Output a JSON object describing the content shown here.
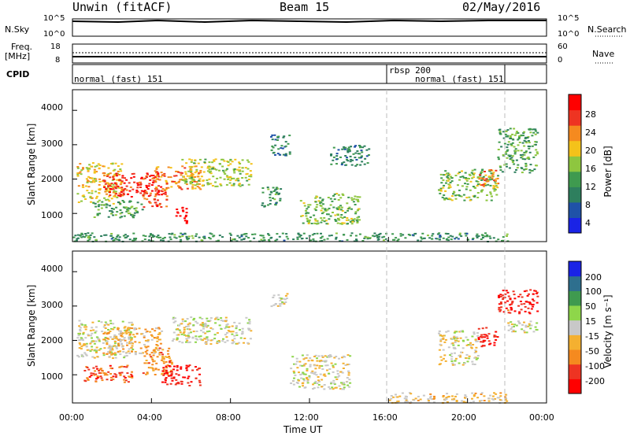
{
  "header": {
    "station": "Unwin (fitACF)",
    "beam": "Beam 15",
    "date": "02/May/2016"
  },
  "top_strips": {
    "nsky_label": "N.Sky",
    "nsearch_label": "N.Search",
    "nsky_ticks": [
      "10^5",
      "10^0"
    ],
    "nsearch_ticks": [
      "10^5",
      "10^0"
    ],
    "freq_label_1": "Freq.",
    "freq_label_2": "[MHz]",
    "freq_ticks": [
      "18",
      "8"
    ],
    "nave_label": "Nave",
    "nave_ticks": [
      "60",
      "0"
    ],
    "cpid_label": "CPID",
    "cpid_segments": [
      {
        "label": "normal (fast) 151",
        "start_h": 0,
        "end_h": 16
      },
      {
        "label": "rbsp 200",
        "start_h": 16,
        "end_h": 22
      },
      {
        "label": "normal (fast) 151",
        "start_h": 16,
        "end_h": 22
      }
    ]
  },
  "x_axis": {
    "title": "Time UT",
    "ticks": [
      "00:00",
      "04:00",
      "08:00",
      "12:00",
      "16:00",
      "20:00",
      "00:00"
    ]
  },
  "chart_data": [
    {
      "type": "heatmap",
      "title": "Power",
      "ylabel": "Slant Range [km]",
      "xlabel": "Time UT",
      "xlim_hours": [
        0,
        24
      ],
      "ylim": [
        180,
        4600
      ],
      "y_ticks": [
        1000,
        2000,
        3000,
        4000
      ],
      "colorbar": {
        "label": "Power [dB]",
        "ticks": [
          "28",
          "24",
          "20",
          "16",
          "12",
          "8",
          "4"
        ],
        "range": [
          0,
          30
        ]
      },
      "regions": [
        {
          "t": [
            0.2,
            2.5
          ],
          "r": [
            1300,
            2500
          ],
          "v": 18
        },
        {
          "t": [
            1.5,
            4.5
          ],
          "r": [
            1500,
            2200
          ],
          "v": 26
        },
        {
          "t": [
            4.0,
            6.5
          ],
          "r": [
            1700,
            2400
          ],
          "v": 22
        },
        {
          "t": [
            5.5,
            9.0
          ],
          "r": [
            1800,
            2600
          ],
          "v": 16
        },
        {
          "t": [
            3.5,
            4.8
          ],
          "r": [
            1200,
            1700
          ],
          "v": 24
        },
        {
          "t": [
            5.2,
            5.8
          ],
          "r": [
            700,
            1200
          ],
          "v": 29
        },
        {
          "t": [
            1.0,
            3.5
          ],
          "r": [
            900,
            1400
          ],
          "v": 12
        },
        {
          "t": [
            10.0,
            11.0
          ],
          "r": [
            2700,
            3300
          ],
          "v": 8
        },
        {
          "t": [
            9.5,
            10.5
          ],
          "r": [
            1200,
            1800
          ],
          "v": 10
        },
        {
          "t": [
            11.5,
            14.5
          ],
          "r": [
            700,
            1600
          ],
          "v": 14
        },
        {
          "t": [
            13.0,
            15.0
          ],
          "r": [
            2400,
            3000
          ],
          "v": 9
        },
        {
          "t": [
            18.5,
            21.5
          ],
          "r": [
            1400,
            2300
          ],
          "v": 14
        },
        {
          "t": [
            20.5,
            21.5
          ],
          "r": [
            1800,
            2300
          ],
          "v": 22
        },
        {
          "t": [
            21.5,
            23.5
          ],
          "r": [
            2200,
            3500
          ],
          "v": 12
        },
        {
          "t": [
            0.0,
            22.0
          ],
          "r": [
            200,
            450
          ],
          "v": 10
        }
      ]
    },
    {
      "type": "heatmap",
      "title": "Velocity",
      "ylabel": "Slant Range [km]",
      "xlabel": "Time UT",
      "xlim_hours": [
        0,
        24
      ],
      "ylim": [
        180,
        4600
      ],
      "y_ticks": [
        1000,
        2000,
        3000,
        4000
      ],
      "colorbar": {
        "label": "Velocity [m s⁻¹]",
        "ticks": [
          "200",
          "100",
          "50",
          "15",
          "-15",
          "-50",
          "-100",
          "-200"
        ],
        "range": [
          -250,
          250
        ]
      },
      "regions": [
        {
          "t": [
            0.2,
            3.0
          ],
          "r": [
            1500,
            2600
          ],
          "v": 0
        },
        {
          "t": [
            1.5,
            4.5
          ],
          "r": [
            1600,
            2400
          ],
          "v": -60
        },
        {
          "t": [
            3.5,
            5.0
          ],
          "r": [
            1000,
            1800
          ],
          "v": -90
        },
        {
          "t": [
            0.5,
            3.0
          ],
          "r": [
            800,
            1300
          ],
          "v": -150
        },
        {
          "t": [
            4.5,
            6.5
          ],
          "r": [
            700,
            1300
          ],
          "v": -200
        },
        {
          "t": [
            5.0,
            9.0
          ],
          "r": [
            1900,
            2700
          ],
          "v": 0
        },
        {
          "t": [
            10.0,
            11.0
          ],
          "r": [
            3000,
            3400
          ],
          "v": 0
        },
        {
          "t": [
            11.0,
            14.0
          ],
          "r": [
            600,
            1600
          ],
          "v": -10
        },
        {
          "t": [
            16.0,
            22.0
          ],
          "r": [
            200,
            500
          ],
          "v": -40
        },
        {
          "t": [
            18.5,
            20.5
          ],
          "r": [
            1300,
            2300
          ],
          "v": 0
        },
        {
          "t": [
            20.5,
            21.5
          ],
          "r": [
            1800,
            2400
          ],
          "v": -200
        },
        {
          "t": [
            21.5,
            23.5
          ],
          "r": [
            2800,
            3500
          ],
          "v": -200
        },
        {
          "t": [
            22.0,
            23.5
          ],
          "r": [
            2200,
            2600
          ],
          "v": 0
        }
      ]
    }
  ],
  "colors": {
    "power_scale": [
      "#1a23e6",
      "#1f52a8",
      "#2e7f5e",
      "#3f9a4f",
      "#8ec63f",
      "#f4c21a",
      "#f58a1f",
      "#ee3422",
      "#ff0000"
    ],
    "velocity_scale": [
      "#ff0000",
      "#ee3422",
      "#f58a1f",
      "#f4b030",
      "#c8c8c8",
      "#8ed64a",
      "#3f9a4f",
      "#2e6f8e",
      "#1a23e6"
    ],
    "divider": "#bcbcbc"
  }
}
